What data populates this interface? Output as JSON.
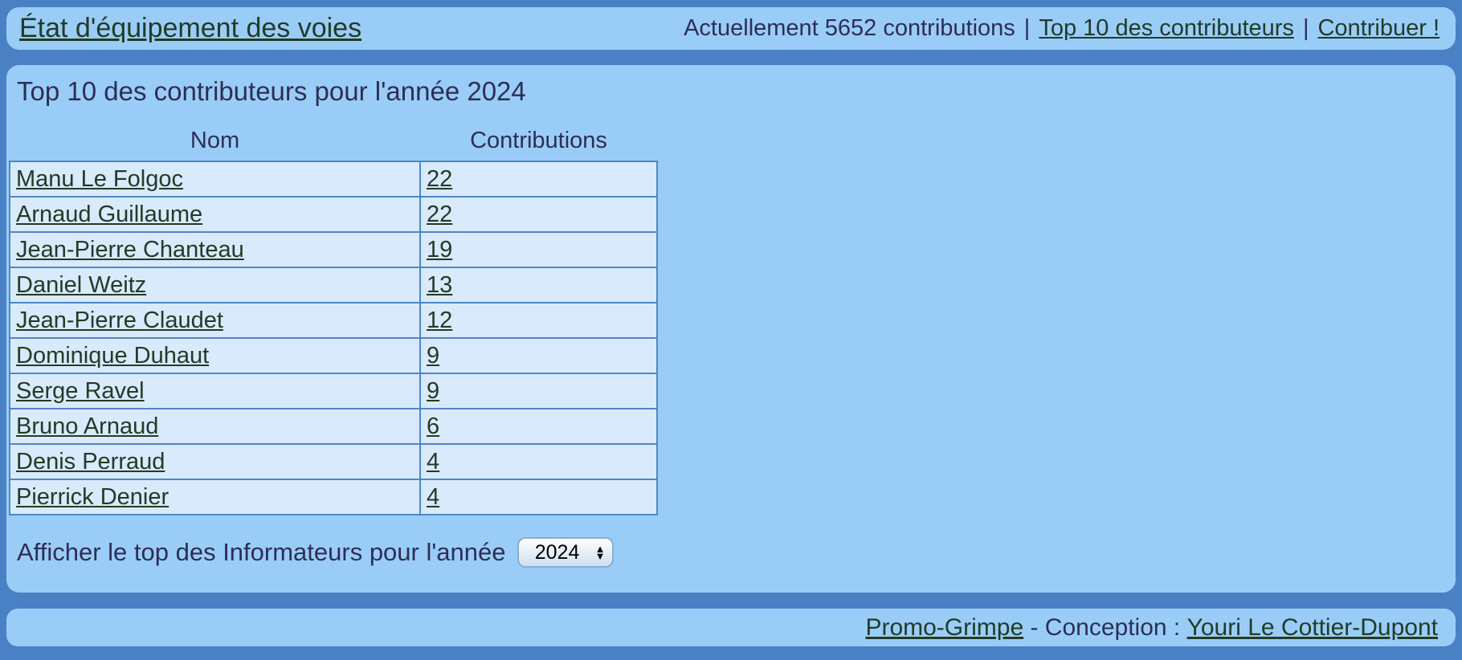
{
  "colors": {
    "page_bg": "#4a81c5",
    "panel_bg": "#99cdf8",
    "cell_bg": "#d9eafc",
    "table_border": "#4d87c8",
    "text_navy": "#2e2e55",
    "link_green": "#233b25"
  },
  "header": {
    "site_title": "État d'équipement des voies",
    "status_text": "Actuellement 5652 contributions",
    "separator": "|",
    "nav": [
      {
        "label": "Top 10 des contributeurs"
      },
      {
        "label": "Contribuer !"
      }
    ]
  },
  "main": {
    "title": "Top 10 des contributeurs pour l'année 2024",
    "table": {
      "columns": [
        "Nom",
        "Contributions"
      ],
      "rows": [
        {
          "name": "Manu Le Folgoc",
          "contributions": "22"
        },
        {
          "name": "Arnaud Guillaume",
          "contributions": "22"
        },
        {
          "name": "Jean-Pierre Chanteau",
          "contributions": "19"
        },
        {
          "name": "Daniel Weitz",
          "contributions": "13"
        },
        {
          "name": "Jean-Pierre Claudet",
          "contributions": "12"
        },
        {
          "name": "Dominique Duhaut",
          "contributions": "9"
        },
        {
          "name": "Serge Ravel",
          "contributions": "9"
        },
        {
          "name": "Bruno Arnaud",
          "contributions": "6"
        },
        {
          "name": "Denis Perraud",
          "contributions": "4"
        },
        {
          "name": "Pierrick Denier",
          "contributions": "4"
        }
      ]
    },
    "year_selector": {
      "label": "Afficher le top des Informateurs pour l'année",
      "selected_year": "2024",
      "arrow_up": "▲",
      "arrow_down": "▼"
    }
  },
  "footer": {
    "site_link": "Promo-Grimpe",
    "conception_text": " - Conception : ",
    "author_link": "Youri Le Cottier-Dupont"
  }
}
